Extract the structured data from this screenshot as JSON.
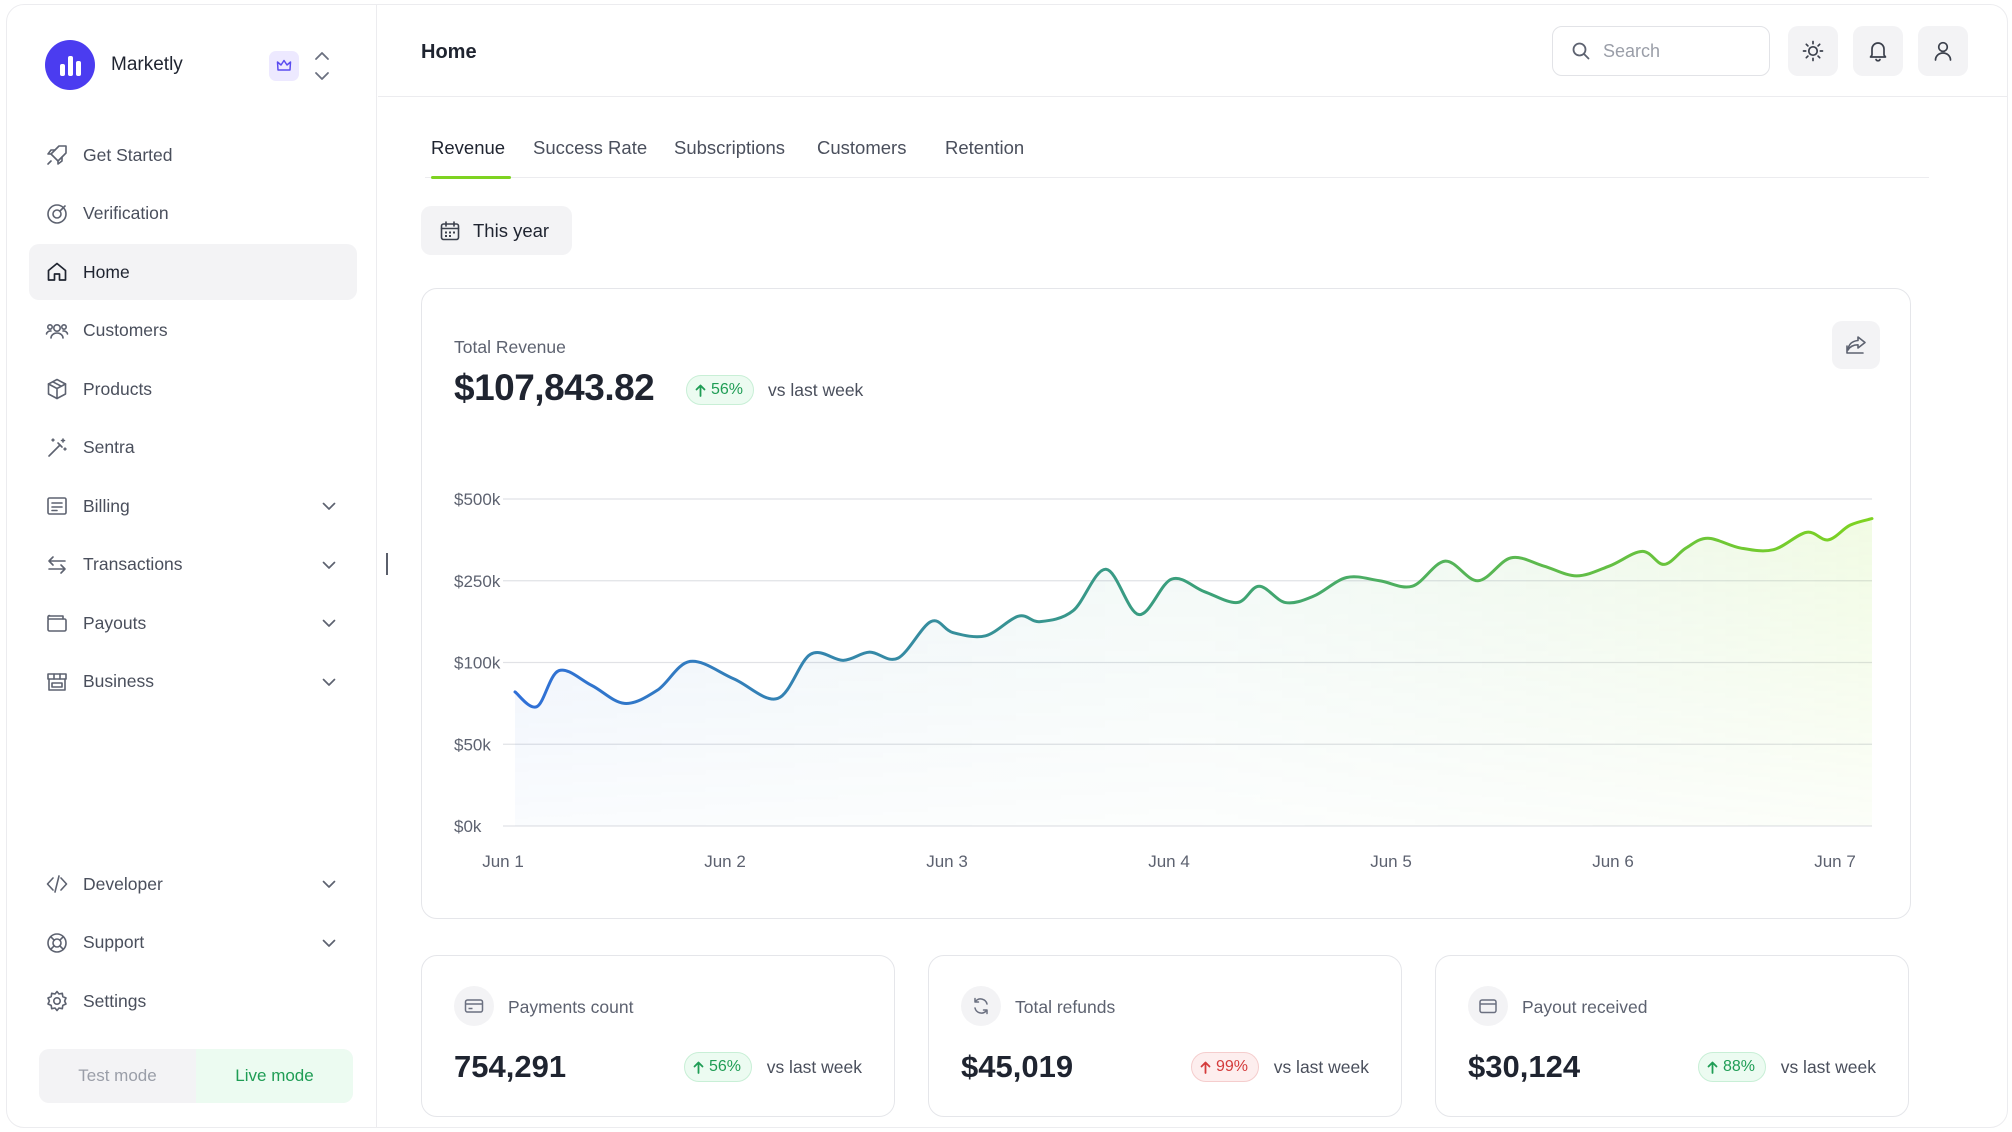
{
  "brand": {
    "name": "Marketly"
  },
  "sidebar": {
    "items": [
      {
        "label": "Get Started",
        "icon": "rocket-icon",
        "expandable": false
      },
      {
        "label": "Verification",
        "icon": "verification-icon",
        "expandable": false
      },
      {
        "label": "Home",
        "icon": "home-icon",
        "expandable": false,
        "active": true
      },
      {
        "label": "Customers",
        "icon": "users-icon",
        "expandable": false
      },
      {
        "label": "Products",
        "icon": "box-icon",
        "expandable": false
      },
      {
        "label": "Sentra",
        "icon": "magic-wand-icon",
        "expandable": false
      },
      {
        "label": "Billing",
        "icon": "receipt-icon",
        "expandable": true
      },
      {
        "label": "Transactions",
        "icon": "arrows-swap-icon",
        "expandable": true
      },
      {
        "label": "Payouts",
        "icon": "wallet-icon",
        "expandable": true
      },
      {
        "label": "Business",
        "icon": "store-icon",
        "expandable": true
      }
    ],
    "bottom_items": [
      {
        "label": "Developer",
        "icon": "code-icon",
        "expandable": true
      },
      {
        "label": "Support",
        "icon": "lifebuoy-icon",
        "expandable": true
      },
      {
        "label": "Settings",
        "icon": "gear-icon",
        "expandable": false
      }
    ],
    "mode": {
      "test_label": "Test mode",
      "live_label": "Live mode",
      "selected": "live"
    }
  },
  "header": {
    "title": "Home",
    "search_placeholder": "Search"
  },
  "tabs": [
    {
      "label": "Revenue",
      "active": true
    },
    {
      "label": "Success Rate"
    },
    {
      "label": "Subscriptions"
    },
    {
      "label": "Customers"
    },
    {
      "label": "Retention"
    }
  ],
  "period": {
    "label": "This year"
  },
  "revenue": {
    "label": "Total Revenue",
    "value": "$107,843.82",
    "change": "56%",
    "direction": "up",
    "comparison": "vs last week"
  },
  "chart_data": {
    "type": "area",
    "x_tick_labels": [
      "Jun 1",
      "Jun 2",
      "Jun 3",
      "Jun 4",
      "Jun 5",
      "Jun 6",
      "Jun 7"
    ],
    "y_tick_labels": [
      "$500k",
      "$250k",
      "$100k",
      "$50k",
      "$0k"
    ],
    "y_ticks": [
      500000,
      250000,
      100000,
      50000,
      0
    ],
    "grid": true,
    "x": [
      1.0,
      1.1,
      1.2,
      1.35,
      1.5,
      1.65,
      1.8,
      2.0,
      2.2,
      2.35,
      2.5,
      2.62,
      2.75,
      2.9,
      3.0,
      3.15,
      3.3,
      3.4,
      3.55,
      3.7,
      3.85,
      4.0,
      4.15,
      4.3,
      4.4,
      4.52,
      4.65,
      4.8,
      4.95,
      5.1,
      5.25,
      5.4,
      5.55,
      5.7,
      5.85,
      6.0,
      6.15,
      6.25,
      6.35,
      6.45,
      6.6,
      6.75,
      6.9,
      7.0,
      7.1,
      7.2
    ],
    "values": [
      82000,
      73000,
      95000,
      86000,
      75000,
      83000,
      102000,
      90000,
      78000,
      115000,
      104000,
      119000,
      108000,
      175000,
      155000,
      149000,
      185000,
      175000,
      195000,
      285000,
      188000,
      255000,
      230000,
      210000,
      240000,
      210000,
      222000,
      260000,
      250000,
      240000,
      310000,
      250000,
      320000,
      295000,
      265000,
      295000,
      340000,
      300000,
      350000,
      380000,
      350000,
      345000,
      398000,
      375000,
      420000,
      440000
    ],
    "gradient_colors": [
      "#2f6fd8",
      "#3aa07a",
      "#7ed321"
    ]
  },
  "stats": [
    {
      "label": "Payments count",
      "icon": "card-icon",
      "value": "754,291",
      "change": "56%",
      "direction": "up",
      "comparison": "vs last week"
    },
    {
      "label": "Total refunds",
      "icon": "refresh-icon",
      "value": "$45,019",
      "change": "99%",
      "direction": "up",
      "tone": "negative",
      "comparison": "vs last week"
    },
    {
      "label": "Payout received",
      "icon": "wallet-icon",
      "value": "$30,124",
      "change": "88%",
      "direction": "up",
      "comparison": "vs last week"
    }
  ]
}
